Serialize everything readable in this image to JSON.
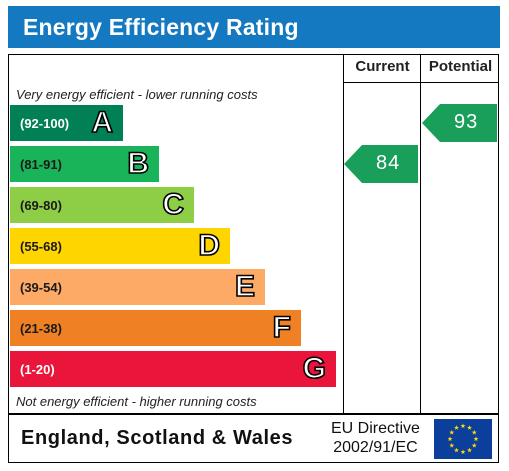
{
  "header": {
    "title": "Energy Efficiency Rating"
  },
  "columns": {
    "current": "Current",
    "potential": "Potential"
  },
  "notes": {
    "top": "Very energy efficient - lower running costs",
    "bottom": "Not energy efficient - higher running costs"
  },
  "footer": {
    "region": "England, Scotland & Wales",
    "directive_line1": "EU Directive",
    "directive_line2": "2002/91/EC"
  },
  "colors": {
    "header_bg": "#1479c1",
    "arrow_green": "#1a9f5b"
  },
  "chart_data": {
    "type": "bar",
    "title": "Energy Efficiency Rating",
    "bands": [
      {
        "letter": "A",
        "range": "(92-100)",
        "color": "#008054"
      },
      {
        "letter": "B",
        "range": "(81-91)",
        "color": "#19b459"
      },
      {
        "letter": "C",
        "range": "(69-80)",
        "color": "#8dce46"
      },
      {
        "letter": "D",
        "range": "(55-68)",
        "color": "#ffd500"
      },
      {
        "letter": "E",
        "range": "(39-54)",
        "color": "#fcaa65"
      },
      {
        "letter": "F",
        "range": "(21-38)",
        "color": "#ef8023"
      },
      {
        "letter": "G",
        "range": "(1-20)",
        "color": "#e9153b"
      }
    ],
    "current": {
      "value": 84,
      "band": "B"
    },
    "potential": {
      "value": 93,
      "band": "A"
    }
  }
}
